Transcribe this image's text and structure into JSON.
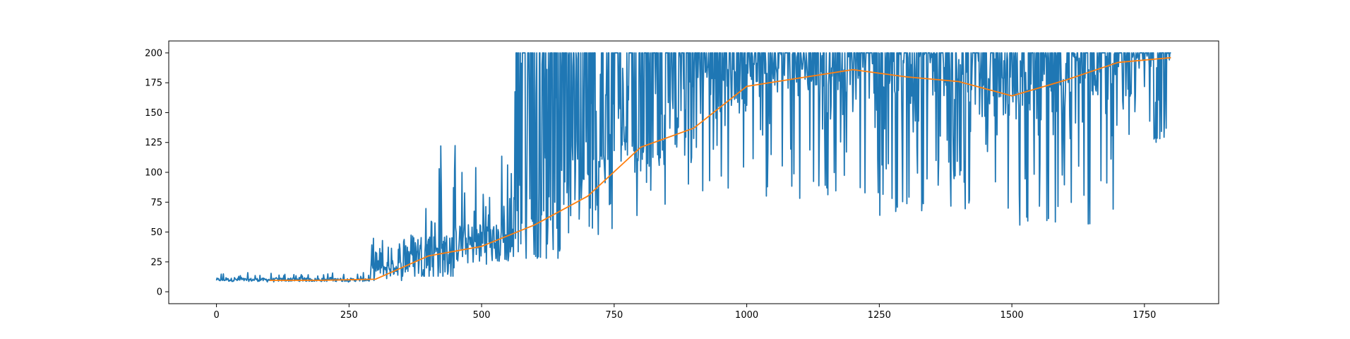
{
  "chart_data": {
    "type": "line",
    "title": "",
    "xlabel": "",
    "ylabel": "",
    "xlim": [
      -90,
      1890
    ],
    "ylim": [
      -10,
      210
    ],
    "xticks": [
      0,
      250,
      500,
      750,
      1000,
      1250,
      1500,
      1750
    ],
    "yticks": [
      0,
      25,
      50,
      75,
      100,
      125,
      150,
      175,
      200
    ],
    "grid": false,
    "legend": "none",
    "colors": {
      "raw": "#1f77b4",
      "average": "#ff7f0e",
      "axes": "#000000",
      "background": "#ffffff"
    },
    "series": [
      {
        "description_key": "raw",
        "x_start": 0,
        "x_end": 1800,
        "step": 1,
        "segments": [
          {
            "x": [
              0,
              290
            ],
            "low": 8,
            "high": 16,
            "base": 10
          },
          {
            "x": [
              290,
              350
            ],
            "low": 9,
            "high": 46,
            "base": 20
          },
          {
            "x": [
              350,
              450
            ],
            "low": 13,
            "high": 127,
            "base": 30
          },
          {
            "x": [
              450,
              560
            ],
            "low": 22,
            "high": 119,
            "base": 40
          },
          {
            "x": [
              560,
              650
            ],
            "low": 28,
            "high": 200,
            "base": 55
          },
          {
            "x": [
              650,
              750
            ],
            "low": 42,
            "high": 200,
            "base": 100
          },
          {
            "x": [
              750,
              900
            ],
            "low": 63,
            "high": 200,
            "base": 130
          },
          {
            "x": [
              900,
              1000
            ],
            "low": 81,
            "high": 200,
            "base": 170
          },
          {
            "x": [
              1000,
              1200
            ],
            "low": 78,
            "high": 200,
            "base": 190
          },
          {
            "x": [
              1200,
              1400
            ],
            "low": 62,
            "high": 200,
            "base": 185
          },
          {
            "x": [
              1400,
              1550
            ],
            "low": 51,
            "high": 200,
            "base": 170
          },
          {
            "x": [
              1550,
              1700
            ],
            "low": 56,
            "high": 200,
            "base": 190
          },
          {
            "x": [
              1700,
              1800
            ],
            "low": 125,
            "high": 200,
            "base": 200
          }
        ]
      },
      {
        "description_key": "average",
        "x": [
          100,
          200,
          300,
          400,
          500,
          600,
          700,
          800,
          900,
          1000,
          1100,
          1200,
          1300,
          1400,
          1500,
          1600,
          1700,
          1800
        ],
        "y": [
          9.5,
          9.6,
          10.5,
          30,
          38,
          56,
          80,
          121,
          137,
          172,
          179,
          186,
          180,
          176,
          164,
          177,
          192,
          196
        ]
      }
    ]
  }
}
